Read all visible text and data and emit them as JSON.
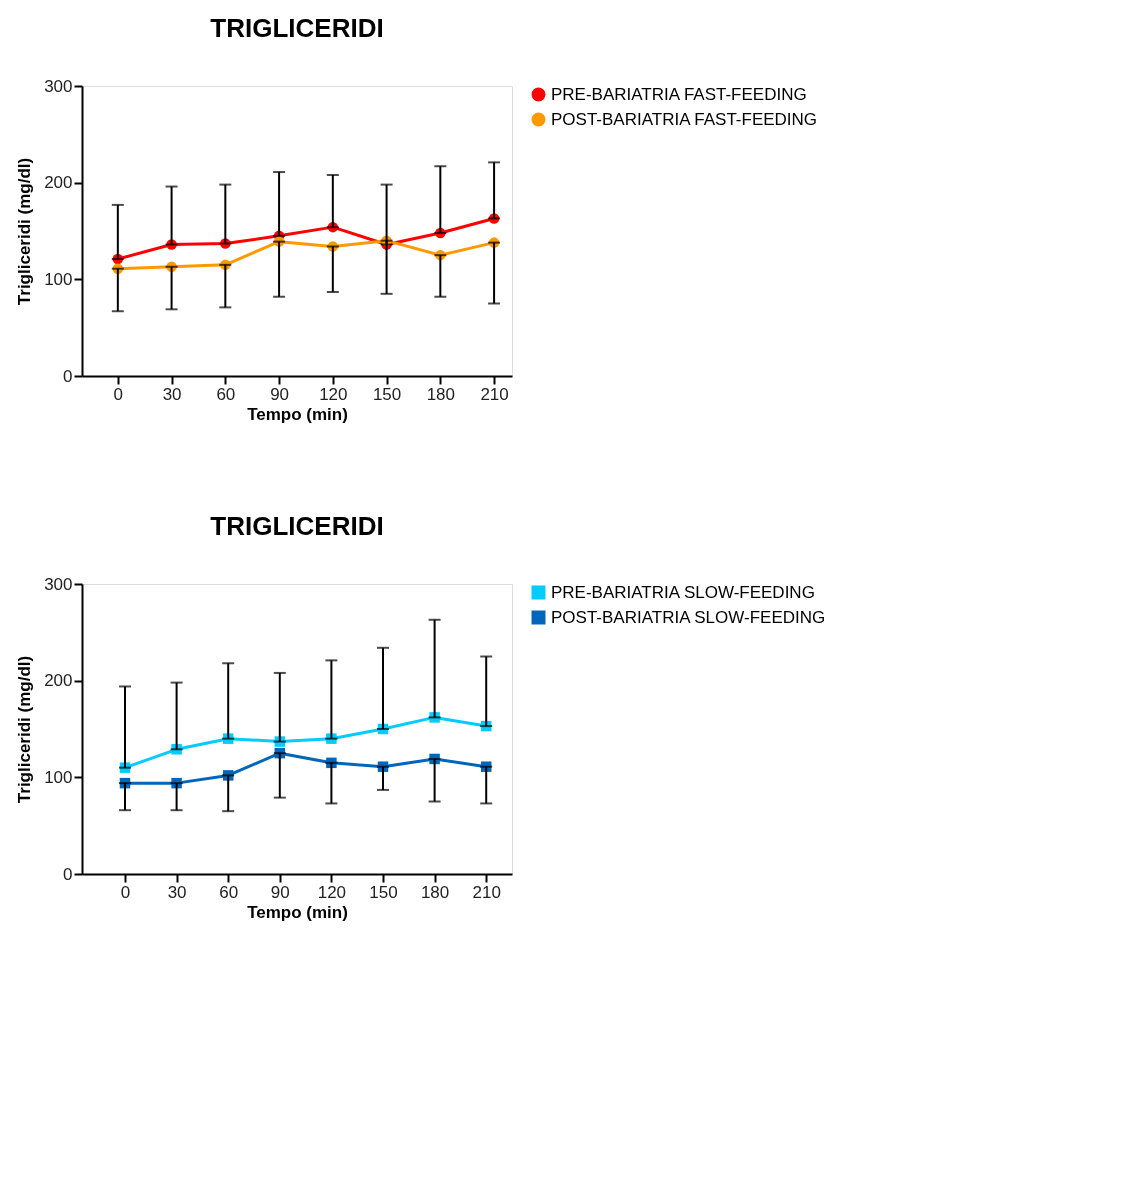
{
  "chart_data": [
    {
      "type": "line",
      "title": "TRIGLICERIDI",
      "xlabel": "Tempo (min)",
      "ylabel": "Trigliceridi  (mg/dl)",
      "x": [
        0,
        30,
        60,
        90,
        120,
        150,
        180,
        210
      ],
      "xlim": [
        -20,
        220
      ],
      "xticks": [
        0,
        30,
        60,
        90,
        120,
        150,
        180,
        210
      ],
      "ylim": [
        0,
        300
      ],
      "yticks": [
        0,
        100,
        200,
        300
      ],
      "grid": false,
      "legend": "right",
      "marker": "circle",
      "line_style": "solid",
      "series": [
        {
          "name": "PRE-BARIATRIA FAST-FEEDING",
          "color": "#ff0000",
          "values": [
            121,
            136,
            137,
            145,
            154,
            136,
            148,
            163
          ],
          "errors": [
            [
              121,
              177
            ],
            [
              136,
              196
            ],
            [
              137,
              198
            ],
            [
              145,
              211
            ],
            [
              154,
              208
            ],
            [
              136,
              198
            ],
            [
              148,
              217
            ],
            [
              163,
              221
            ]
          ]
        },
        {
          "name": "POST-BARIATRIA FAST-FEEDING",
          "color": "#ff9900",
          "values": [
            111,
            113,
            115,
            139,
            134,
            140,
            125,
            138
          ],
          "errors": [
            [
              67,
              111
            ],
            [
              69,
              113
            ],
            [
              71,
              115
            ],
            [
              82,
              139
            ],
            [
              87,
              134
            ],
            [
              85,
              140
            ],
            [
              82,
              125
            ],
            [
              75,
              138
            ]
          ]
        }
      ]
    },
    {
      "type": "line",
      "title": "TRIGLICERIDI",
      "xlabel": "Tempo  (min)",
      "ylabel": "Trigliceridi  (mg/dl)",
      "x": [
        0,
        30,
        60,
        90,
        120,
        150,
        180,
        210
      ],
      "xlim": [
        -25,
        225
      ],
      "xticks": [
        0,
        30,
        60,
        90,
        120,
        150,
        180,
        210
      ],
      "ylim": [
        0,
        300
      ],
      "yticks": [
        0,
        100,
        200,
        300
      ],
      "grid": false,
      "legend": "right",
      "marker": "square",
      "line_style": "solid",
      "series": [
        {
          "name": "PRE-BARIATRIA SLOW-FEEDING",
          "color": "#00ccff",
          "values": [
            110,
            129,
            140,
            137,
            140,
            150,
            162,
            153
          ],
          "errors": [
            [
              110,
              194
            ],
            [
              129,
              198
            ],
            [
              140,
              218
            ],
            [
              137,
              208
            ],
            [
              140,
              221
            ],
            [
              150,
              234
            ],
            [
              162,
              263
            ],
            [
              153,
              225
            ]
          ]
        },
        {
          "name": "POST-BARIATRIA SLOW-FEEDING",
          "color": "#0066bb",
          "values": [
            94,
            94,
            102,
            125,
            115,
            111,
            119,
            111
          ],
          "errors": [
            [
              66,
              94
            ],
            [
              66,
              94
            ],
            [
              65,
              102
            ],
            [
              79,
              125
            ],
            [
              73,
              115
            ],
            [
              87,
              111
            ],
            [
              75,
              119
            ],
            [
              73,
              111
            ]
          ]
        }
      ]
    }
  ]
}
